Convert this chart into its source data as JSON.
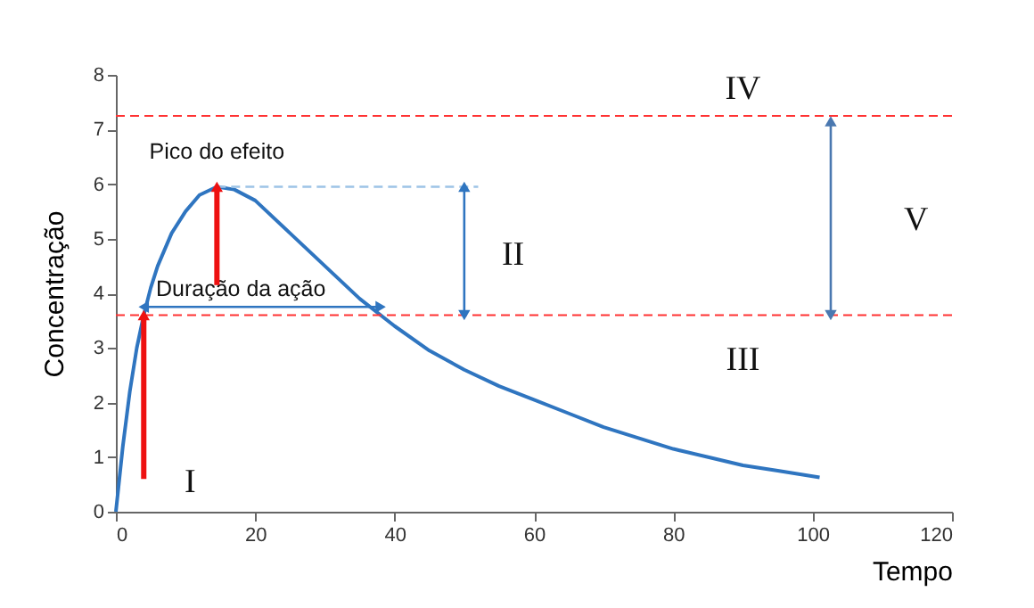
{
  "chart_data": {
    "type": "line",
    "xlabel": "Tempo",
    "ylabel": "Concentração",
    "xlim": [
      0,
      120
    ],
    "ylim": [
      0,
      8
    ],
    "xticks": [
      0,
      20,
      40,
      60,
      80,
      100,
      120
    ],
    "yticks": [
      0,
      1,
      2,
      3,
      4,
      5,
      6,
      7,
      8
    ],
    "grid": false,
    "marker": "none",
    "series": [
      {
        "color": "#2f75c0",
        "line_style": "solid",
        "x": [
          0,
          1,
          2,
          3,
          4,
          5,
          6,
          8,
          10,
          12,
          14.5,
          17,
          20,
          25,
          30,
          35,
          40,
          45,
          50,
          55,
          60,
          65,
          70,
          75,
          80,
          85,
          90,
          95,
          101
        ],
        "values": [
          0,
          1.2,
          2.2,
          3.0,
          3.6,
          4.1,
          4.5,
          5.1,
          5.5,
          5.8,
          5.95,
          5.9,
          5.7,
          5.1,
          4.5,
          3.9,
          3.4,
          2.95,
          2.6,
          2.3,
          2.05,
          1.8,
          1.55,
          1.35,
          1.15,
          1.0,
          0.85,
          0.75,
          0.63
        ]
      },
      {
        "color": "#9dc3e6",
        "line_style": "dashed",
        "x": [
          14.5,
          52
        ],
        "values": [
          5.95,
          5.95
        ]
      }
    ],
    "ref_lines": [
      {
        "axis": "y",
        "value": 7.25,
        "label": null,
        "color": "#ff3333",
        "line_style": "dashed"
      },
      {
        "axis": "y",
        "value": 3.6,
        "label": null,
        "color": "#ff3333",
        "line_style": "dashed"
      }
    ],
    "annotations": [
      {
        "text": "Pico do efeito",
        "x": 14.5,
        "y": 5.95
      },
      {
        "text": "Duração da ação",
        "x": 21,
        "y": 3.6
      },
      {
        "text": "I",
        "x": 4,
        "y": 3.6
      },
      "II",
      "III",
      "IV",
      "V"
    ]
  }
}
